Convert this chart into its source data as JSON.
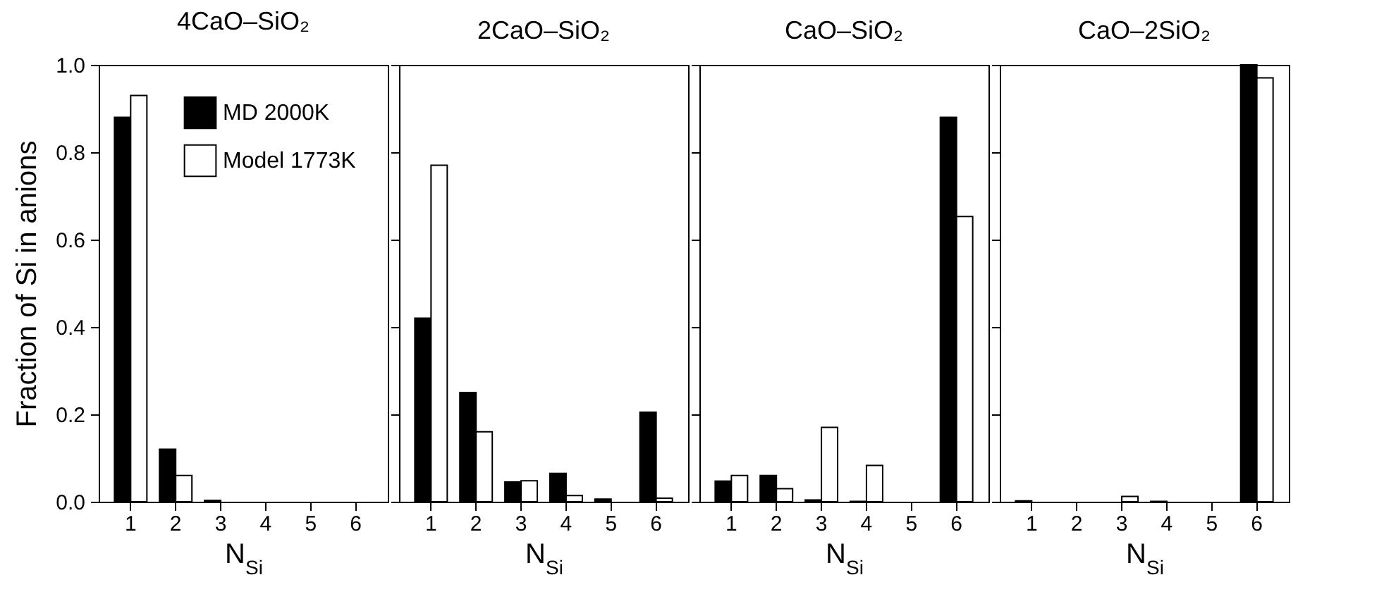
{
  "chart_data": [
    {
      "type": "bar",
      "title": "4CaO–SiO₂",
      "xlabel": "N$_{Si}$",
      "ylabel": "Fraction of Si in anions",
      "categories": [
        "1",
        "2",
        "3",
        "4",
        "5",
        "6"
      ],
      "ylim": [
        0,
        1
      ],
      "yticks": [
        {
          "value": 0,
          "label": "0.0"
        },
        {
          "value": 0.2,
          "label": "0.2"
        },
        {
          "value": 0.4,
          "label": "0.4"
        },
        {
          "value": 0.6,
          "label": "0.6"
        },
        {
          "value": 0.8,
          "label": "0.8"
        },
        {
          "value": 1,
          "label": "1.0"
        }
      ],
      "legend": "top right",
      "series": [
        {
          "name": "MD 2000K",
          "color": "#000000",
          "values": [
            0.88,
            0.12,
            0.003,
            null,
            null,
            null
          ]
        },
        {
          "name": "Model 1773K",
          "color": "#ffffff",
          "values": [
            0.93,
            0.06,
            null,
            null,
            null,
            null
          ]
        }
      ]
    },
    {
      "type": "bar",
      "title": "2CaO–SiO₂",
      "xlabel": "N$_{Si}$",
      "categories": [
        "1",
        "2",
        "3",
        "4",
        "5",
        "6"
      ],
      "ylim": [
        0,
        1
      ],
      "yticks": [
        0,
        0.2,
        0.4,
        0.6,
        0.8,
        1
      ],
      "tick_labels": "x",
      "series": [
        {
          "name": "MD 2000K",
          "color": "#000000",
          "values": [
            0.42,
            0.25,
            0.045,
            0.065,
            0.006,
            0.205
          ]
        },
        {
          "name": "Model 1773K",
          "color": "#ffffff",
          "values": [
            0.77,
            0.16,
            0.048,
            0.014,
            null,
            0.008
          ]
        }
      ]
    },
    {
      "type": "bar",
      "title": "CaO–SiO₂",
      "xlabel": "N$_{Si}$",
      "categories": [
        "1",
        "2",
        "3",
        "4",
        "5",
        "6"
      ],
      "ylim": [
        0,
        1
      ],
      "yticks": [
        0,
        0.2,
        0.4,
        0.6,
        0.8,
        1
      ],
      "tick_labels": "x",
      "series": [
        {
          "name": "MD 2000K",
          "color": "#000000",
          "values": [
            0.047,
            0.06,
            0.004,
            0.001,
            null,
            0.88
          ]
        },
        {
          "name": "Model 1773K",
          "color": "#ffffff",
          "values": [
            0.06,
            0.03,
            0.17,
            0.083,
            null,
            0.653
          ]
        }
      ]
    },
    {
      "type": "bar",
      "title": "CaO–2SiO₂",
      "xlabel": "N$_{Si}$",
      "categories": [
        "1",
        "2",
        "3",
        "4",
        "5",
        "6"
      ],
      "ylim": [
        0,
        1
      ],
      "yticks": [
        0,
        0.2,
        0.4,
        0.6,
        0.8,
        1
      ],
      "tick_labels": "x",
      "series": [
        {
          "name": "MD 2000K",
          "color": "#000000",
          "values": [
            0.002,
            null,
            null,
            0.001,
            null,
            1.0
          ]
        },
        {
          "name": "Model 1773K",
          "color": "#ffffff",
          "values": [
            null,
            null,
            0.012,
            null,
            null,
            0.97
          ]
        }
      ]
    }
  ]
}
